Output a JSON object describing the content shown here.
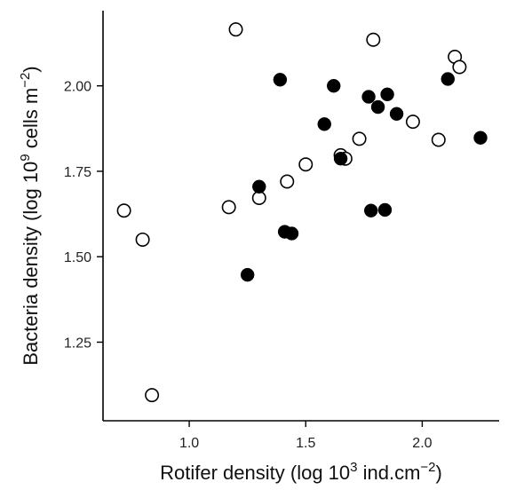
{
  "chart_data": {
    "type": "scatter",
    "xlabel": {
      "prefix": "Rotifer density (log 10",
      "sup": "3",
      "mid": " ind.cm",
      "sup2": "−2",
      "suffix": ")"
    },
    "ylabel": {
      "prefix": "Bacteria density (log 10",
      "sup": "9",
      "mid": " cells m",
      "sup2": "−2",
      "suffix": ")"
    },
    "xlim": [
      0.63,
      2.33
    ],
    "ylim": [
      1.02,
      2.22
    ],
    "x_ticks": [
      1.0,
      1.5,
      2.0
    ],
    "x_tick_labels": [
      "1.0",
      "1.5",
      "2.0"
    ],
    "y_ticks": [
      1.25,
      1.5,
      1.75,
      2.0
    ],
    "y_tick_labels": [
      "1.25",
      "1.50",
      "1.75",
      "2.00"
    ],
    "grid": false,
    "series": [
      {
        "marker": "open-circle",
        "color": "#000000",
        "points": [
          [
            0.72,
            1.635
          ],
          [
            0.8,
            1.55
          ],
          [
            0.84,
            1.095
          ],
          [
            1.17,
            1.645
          ],
          [
            1.2,
            2.165
          ],
          [
            1.3,
            1.672
          ],
          [
            1.42,
            1.72
          ],
          [
            1.5,
            1.77
          ],
          [
            1.65,
            1.797
          ],
          [
            1.67,
            1.787
          ],
          [
            1.73,
            1.845
          ],
          [
            1.79,
            2.135
          ],
          [
            1.96,
            1.895
          ],
          [
            2.07,
            1.842
          ],
          [
            2.14,
            2.085
          ],
          [
            2.16,
            2.055
          ]
        ]
      },
      {
        "marker": "filled-circle",
        "color": "#000000",
        "points": [
          [
            1.25,
            1.447
          ],
          [
            1.3,
            1.705
          ],
          [
            1.39,
            2.018
          ],
          [
            1.41,
            1.573
          ],
          [
            1.44,
            1.568
          ],
          [
            1.58,
            1.888
          ],
          [
            1.62,
            2.0
          ],
          [
            1.65,
            1.787
          ],
          [
            1.77,
            1.968
          ],
          [
            1.78,
            1.635
          ],
          [
            1.81,
            1.938
          ],
          [
            1.84,
            1.637
          ],
          [
            1.85,
            1.975
          ],
          [
            1.89,
            1.918
          ],
          [
            2.11,
            2.02
          ],
          [
            2.25,
            1.848
          ]
        ]
      }
    ]
  }
}
